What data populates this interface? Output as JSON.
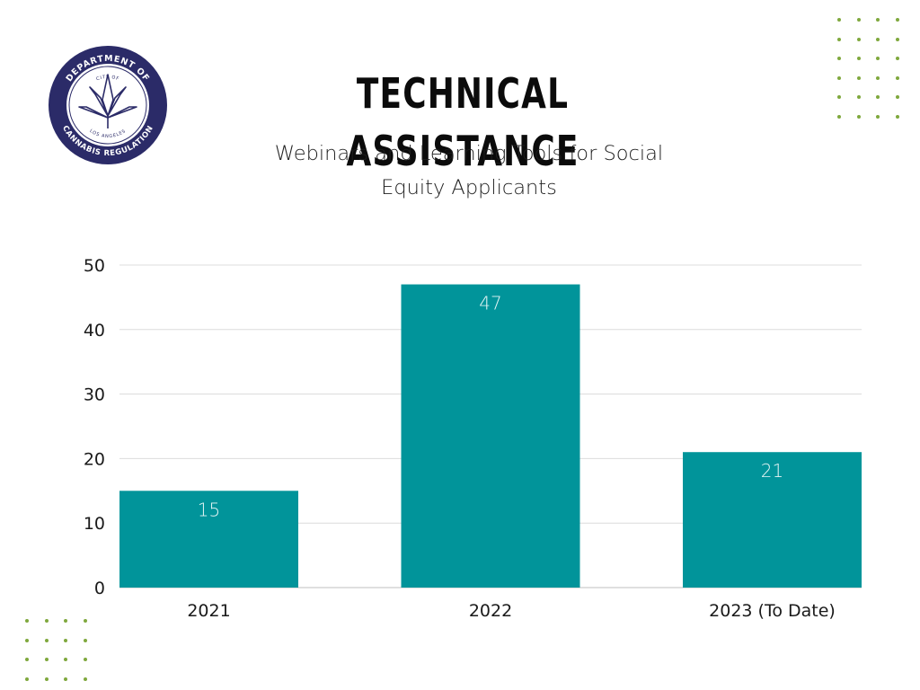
{
  "header": {
    "title": "TECHNICAL ASSISTANCE",
    "subtitle_line1": "Webinars and Learning Tools for Social",
    "subtitle_line2": "Equity Applicants"
  },
  "logo": {
    "top_text": "DEPARTMENT OF",
    "inner_top": "CITY OF",
    "inner_bottom": "LOS ANGELES",
    "bottom_text": "CANNABIS REGULATION",
    "ring_color": "#2b2b68",
    "icon": "cannabis-leaf-icon"
  },
  "colors": {
    "bar": "#01949a",
    "grid": "#dcdcdc",
    "axis": "#bfbfbf",
    "dots": "#7fa83d"
  },
  "chart_data": {
    "type": "bar",
    "categories": [
      "2021",
      "2022",
      "2023 (To Date)"
    ],
    "values": [
      15,
      47,
      21
    ],
    "ylim": [
      0,
      50
    ],
    "yticks": [
      0,
      10,
      20,
      30,
      40,
      50
    ],
    "grid": true,
    "data_labels": true,
    "title": "",
    "xlabel": "",
    "ylabel": ""
  }
}
